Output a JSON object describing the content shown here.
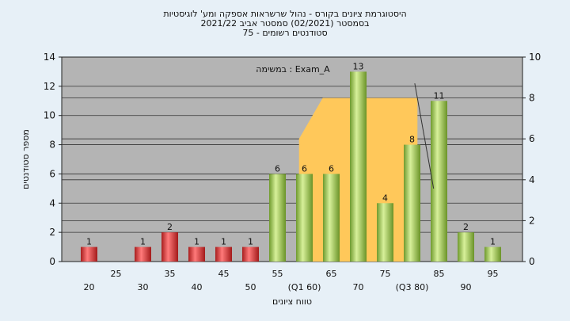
{
  "chart_data": {
    "type": "bar",
    "title_lines": [
      "היסטוגרמת ציונים בקורס - נהול שרשראות אספקה ומע' לוגיסטיות",
      "בסמסטר  (02/2021)  סמסטר אביב 2021/22",
      "סטודנטים רשומים - 75"
    ],
    "annotation": "במשימה : Exam_A",
    "xlabel": "טווח ציונים",
    "ylabel": "מספר סטודנטים",
    "y_left": {
      "min": 0,
      "max": 14,
      "ticks": [
        0,
        2,
        4,
        6,
        8,
        10,
        12,
        14
      ]
    },
    "y_right": {
      "min": 0,
      "max": 10,
      "ticks": [
        0,
        2,
        4,
        6,
        8,
        10
      ]
    },
    "x_ticks": [
      "20",
      "25",
      "30",
      "35",
      "40",
      "45",
      "50",
      "55",
      "(Q1 60)",
      "65",
      "70",
      "75",
      "(Q3 80)",
      "85",
      "90",
      "95"
    ],
    "bars": [
      {
        "x": 20,
        "value": 1,
        "label": "1",
        "color": "red"
      },
      {
        "x": 30,
        "value": 1,
        "label": "1",
        "color": "red"
      },
      {
        "x": 35,
        "value": 2,
        "label": "2",
        "color": "red"
      },
      {
        "x": 40,
        "value": 1,
        "label": "1",
        "color": "red"
      },
      {
        "x": 45,
        "value": 1,
        "label": "1",
        "color": "red"
      },
      {
        "x": 50,
        "value": 1,
        "label": "1",
        "color": "red"
      },
      {
        "x": 55,
        "value": 6,
        "label": "6",
        "color": "green"
      },
      {
        "x": 60,
        "value": 6,
        "label": "6",
        "color": "green"
      },
      {
        "x": 65,
        "value": 6,
        "label": "6",
        "color": "green"
      },
      {
        "x": 70,
        "value": 13,
        "label": "13",
        "color": "green"
      },
      {
        "x": 75,
        "value": 4,
        "label": "4",
        "color": "green"
      },
      {
        "x": 80,
        "value": 8,
        "label": "8",
        "color": "green"
      },
      {
        "x": 85,
        "value": 11,
        "label": "11",
        "color": "green"
      },
      {
        "x": 90,
        "value": 2,
        "label": "2",
        "color": "green"
      },
      {
        "x": 95,
        "value": 1,
        "label": "1",
        "color": "green"
      }
    ],
    "box_region": {
      "x_start": 59,
      "x_end": 81,
      "y_top": 11.2,
      "y_ramp_bottom": 8.4,
      "y_ramp_end": 12.5
    },
    "whisker_line": {
      "x1": 80.5,
      "y1": 12.2,
      "x2": 84,
      "y2": 5
    },
    "colors": {
      "plot_bg": "#b4b4b4",
      "box": "#ffc85a",
      "red_bar": "#e03a3a",
      "green_bar": "#9acb4e",
      "page_bg": "#e7f0f7"
    }
  }
}
